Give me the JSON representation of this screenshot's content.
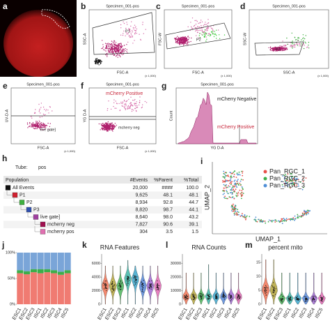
{
  "panels": {
    "a": {
      "label": "a"
    },
    "b": {
      "label": "b",
      "title": "Specimen_001-pos",
      "x_label": "FSC-A",
      "y_label": "SSC-A",
      "gate": "P1",
      "scale": "(x 1,000)"
    },
    "c": {
      "label": "c",
      "title": "Specimen_001-pos",
      "x_label": "FSC-A",
      "y_label": "FSC-W",
      "gate": "P2",
      "scale": "(x 1,000)"
    },
    "d": {
      "label": "d",
      "title": "Specimen_001-pos",
      "x_label": "SSC-A",
      "y_label": "SSC-W",
      "gate": "P3",
      "scale": "(x 1,000)"
    },
    "e": {
      "label": "e",
      "title": "Specimen_001-pos",
      "x_label": "FSC-A",
      "y_label": "UV-D-A",
      "gate": "live gate]",
      "scale": "(x 1,000)"
    },
    "f": {
      "label": "f",
      "title": "Specimen_001-pos",
      "x_label": "FSC-A",
      "y_label": "YG D-A",
      "gate_pos": "mCherry Positive",
      "gate_neg": "mcherry neg",
      "scale": "(x 1,000)"
    },
    "g": {
      "label": "g",
      "title": "Specimen_001-pos",
      "x_label": "YG D-A",
      "y_label": "Count",
      "neg": "mCherry Negative",
      "pos": "mCherry Positive"
    },
    "h": {
      "label": "h",
      "tube_label": "Tube:",
      "tube": "pos",
      "columns": [
        "Population",
        "#Events",
        "%Parent",
        "%Total"
      ],
      "rows": [
        [
          "All Events",
          "20,000",
          "####",
          "100.0"
        ],
        [
          "P1",
          "9,625",
          "48.1",
          "48.1"
        ],
        [
          "P2",
          "8,934",
          "92.8",
          "44.7"
        ],
        [
          "P3",
          "8,820",
          "98.7",
          "44.1"
        ],
        [
          "live gate]",
          "8,640",
          "98.0",
          "43.2"
        ],
        [
          "mcherry neg",
          "7,827",
          "90.6",
          "39.1"
        ],
        [
          "mcherry pos",
          "304",
          "3.5",
          "1.5"
        ]
      ]
    },
    "i": {
      "label": "i",
      "x_label": "UMAP_1",
      "y_label": "UMAP_2",
      "legend": [
        {
          "name": "Pan_RGC_1",
          "color": "#e8504a"
        },
        {
          "name": "Pan_RGC_2",
          "color": "#3cae4a"
        },
        {
          "name": "Pan_RGC_3",
          "color": "#4f8fd6"
        }
      ]
    },
    "j": {
      "label": "j",
      "type": "bar",
      "categories": [
        "ESC1",
        "ESC2",
        "ESC3",
        "ISC1",
        "ISC2",
        "ISC3",
        "ISC4",
        "ISC5"
      ],
      "series": [
        {
          "name": "Pan_RGC_1",
          "color": "#f07b72",
          "values": [
            60,
            58,
            62,
            60,
            62,
            60,
            57,
            60
          ]
        },
        {
          "name": "Pan_RGC_2",
          "color": "#3cae4a",
          "values": [
            6,
            6,
            6,
            8,
            6,
            6,
            6,
            6
          ]
        },
        {
          "name": "Pan_RGC_3",
          "color": "#7aa5d8",
          "values": [
            34,
            36,
            32,
            32,
            32,
            34,
            37,
            34
          ]
        }
      ],
      "ylim": [
        0,
        100
      ],
      "yticks": [
        {
          "value": 0,
          "label": "0%"
        },
        {
          "value": 50,
          "label": "50%"
        },
        {
          "value": 100,
          "label": "100%"
        }
      ]
    },
    "k": {
      "label": "k",
      "title": "RNA Features",
      "ylim": [
        0,
        7000
      ],
      "yticks": [
        0,
        2000,
        4000,
        6000
      ]
    },
    "l": {
      "label": "l",
      "title": "RNA Counts",
      "ylim": [
        0,
        35000
      ],
      "yticks": [
        0,
        10000,
        20000,
        30000
      ]
    },
    "m": {
      "label": "m",
      "title": "percent mito",
      "ylim": [
        0,
        17
      ],
      "yticks": [
        0,
        5,
        10,
        15
      ]
    }
  }
}
